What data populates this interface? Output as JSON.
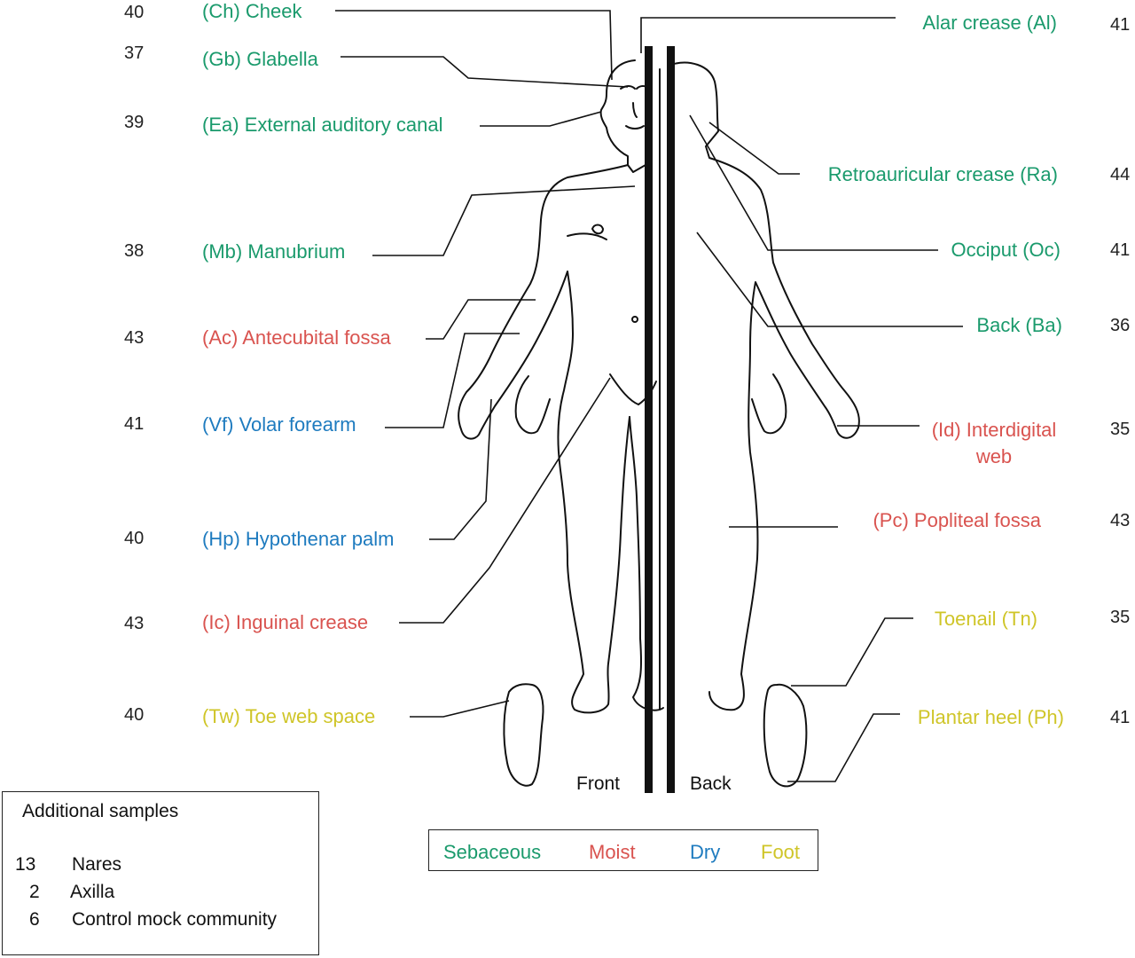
{
  "colors": {
    "sebaceous": "#1a9a6c",
    "moist": "#d9534f",
    "dry": "#1e7bbf",
    "foot": "#cfc528",
    "line": "#111111"
  },
  "sites_left": [
    {
      "code": "(Ch)",
      "name": "Cheek",
      "count": "40",
      "category": "sebaceous"
    },
    {
      "code": "(Gb)",
      "name": "Glabella",
      "count": "37",
      "category": "sebaceous"
    },
    {
      "code": "(Ea)",
      "name": "External auditory canal",
      "count": "39",
      "category": "sebaceous"
    },
    {
      "code": "(Mb)",
      "name": "Manubrium",
      "count": "38",
      "category": "sebaceous"
    },
    {
      "code": "(Ac)",
      "name": "Antecubital fossa",
      "count": "43",
      "category": "moist"
    },
    {
      "code": "(Vf)",
      "name": "Volar forearm",
      "count": "41",
      "category": "dry"
    },
    {
      "code": "(Hp)",
      "name": "Hypothenar palm",
      "count": "40",
      "category": "dry"
    },
    {
      "code": "(Ic)",
      "name": "Inguinal crease",
      "count": "43",
      "category": "moist"
    },
    {
      "code": "(Tw)",
      "name": "Toe web space",
      "count": "40",
      "category": "foot"
    }
  ],
  "sites_right": [
    {
      "label": "Alar crease (Al)",
      "count": "41",
      "category": "sebaceous"
    },
    {
      "label": "Retroauricular crease (Ra)",
      "count": "44",
      "category": "sebaceous"
    },
    {
      "label": "Occiput (Oc)",
      "count": "41",
      "category": "sebaceous"
    },
    {
      "label": "Back (Ba)",
      "count": "36",
      "category": "sebaceous"
    },
    {
      "label_line1": "(Id) Interdigital",
      "label_line2": "web",
      "count": "35",
      "category": "moist"
    },
    {
      "label": "(Pc) Popliteal fossa",
      "count": "43",
      "category": "moist"
    },
    {
      "label": "Toenail (Tn)",
      "count": "35",
      "category": "foot"
    },
    {
      "label": "Plantar heel (Ph)",
      "count": "41",
      "category": "foot"
    }
  ],
  "panel_labels": {
    "front": "Front",
    "back": "Back"
  },
  "additional_samples": {
    "title": "Additional samples",
    "items": [
      {
        "count": "13",
        "name": "Nares"
      },
      {
        "count": "2",
        "name": "Axilla"
      },
      {
        "count": "6",
        "name": "Control mock community"
      }
    ]
  },
  "legend": {
    "sebaceous": "Sebaceous",
    "moist": "Moist",
    "dry": "Dry",
    "foot": "Foot"
  }
}
